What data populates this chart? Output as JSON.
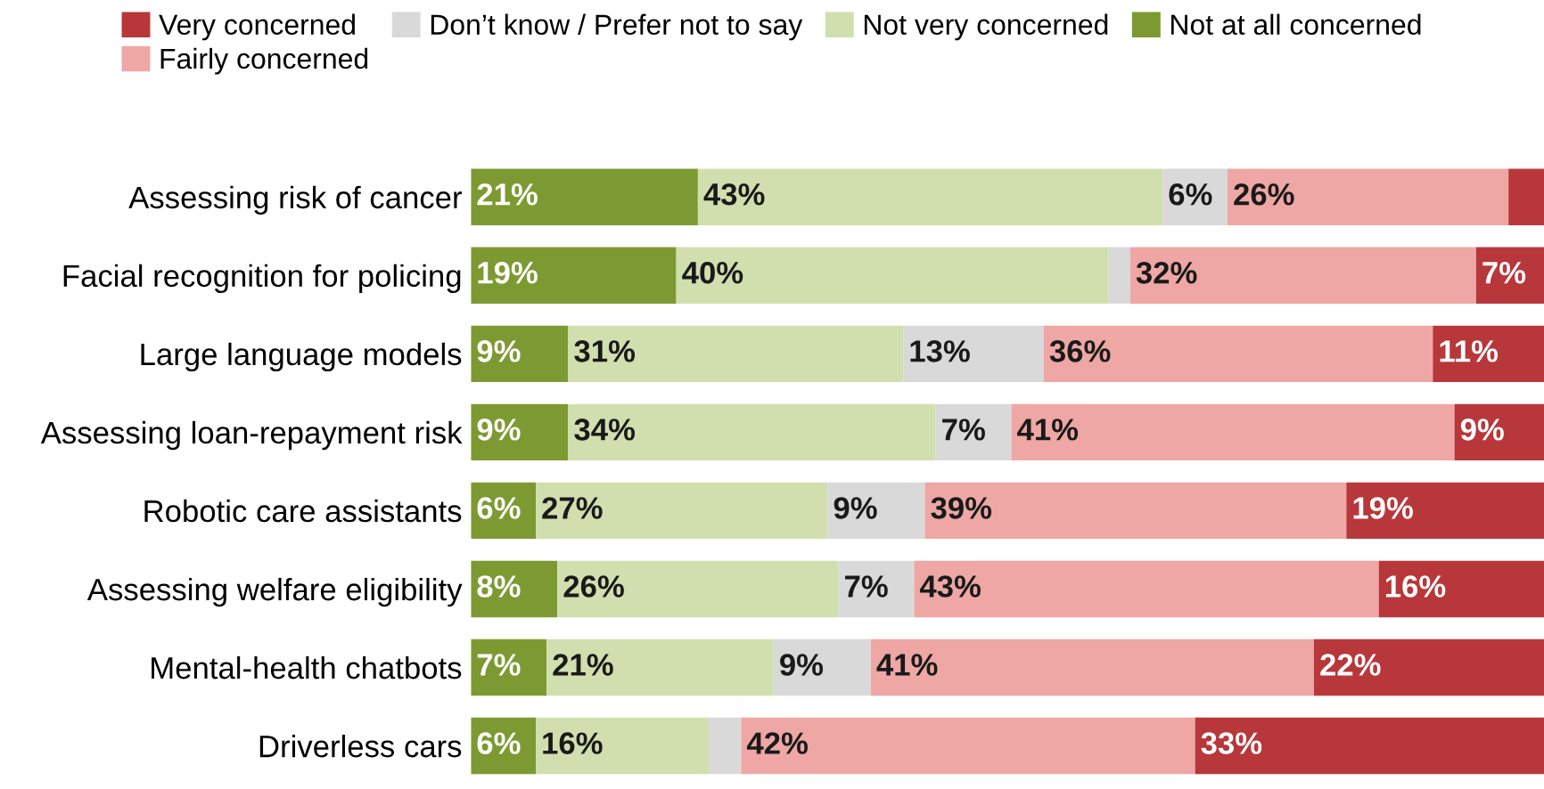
{
  "chart_data": {
    "type": "bar",
    "orientation": "horizontal",
    "stacked": true,
    "legend": "top",
    "grid": false,
    "tick_labels": "y",
    "categories": [
      "Assessing risk of cancer",
      "Facial recognition for policing",
      "Large language models",
      "Assessing loan-repayment risk",
      "Robotic care assistants",
      "Assessing welfare eligibility",
      "Mental-health chatbots",
      "Driverless cars"
    ],
    "series": [
      {
        "name": "Not at all concerned",
        "color": "#7d9a32",
        "values": [
          21,
          19,
          9,
          9,
          6,
          8,
          7,
          6
        ],
        "value_labels": [
          "21%",
          "19%",
          "9%",
          "9%",
          "6%",
          "8%",
          "7%",
          "6%"
        ]
      },
      {
        "name": "Not very concerned",
        "color": "#d1dfae",
        "values": [
          43,
          40,
          31,
          34,
          27,
          26,
          21,
          16
        ],
        "value_labels": [
          "43%",
          "40%",
          "31%",
          "34%",
          "27%",
          "26%",
          "21%",
          "16%"
        ]
      },
      {
        "name": "Don’t know / Prefer not to say",
        "color": "#d9d9d9",
        "values": [
          6,
          2,
          13,
          7,
          9,
          7,
          9,
          3
        ],
        "value_labels": [
          "6%",
          null,
          "13%",
          "7%",
          "9%",
          "7%",
          "9%",
          null
        ]
      },
      {
        "name": "Fairly concerned",
        "color": "#eea7a4",
        "values": [
          26,
          32,
          36,
          41,
          39,
          43,
          41,
          42
        ],
        "value_labels": [
          "26%",
          "32%",
          "36%",
          "41%",
          "39%",
          "43%",
          "41%",
          "42%"
        ]
      },
      {
        "name": "Very concerned",
        "color": "#b8373a",
        "values": [
          4,
          7,
          11,
          9,
          19,
          16,
          22,
          33
        ],
        "value_labels": [
          null,
          "7%",
          "11%",
          "9%",
          "19%",
          "16%",
          "22%",
          "33%"
        ]
      }
    ]
  }
}
